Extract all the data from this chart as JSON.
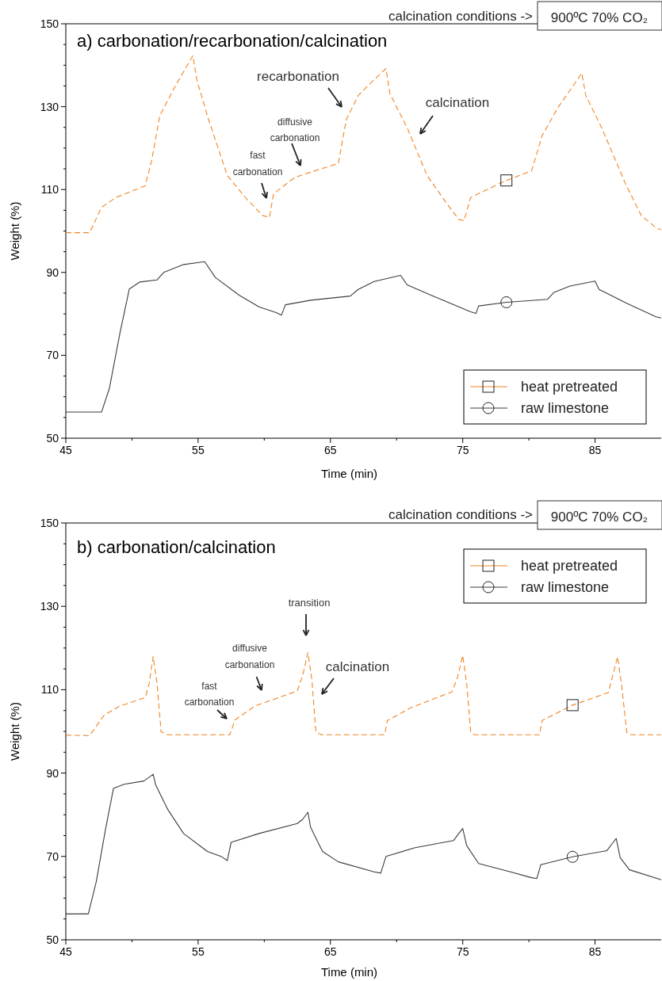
{
  "chart_data": [
    {
      "type": "line",
      "title": "a) carbonation/recarbonation/calcination",
      "xlabel": "Time (min)",
      "ylabel": "Weight (%)",
      "xlim": [
        45,
        90
      ],
      "ylim": [
        50,
        150
      ],
      "xticks": [
        45,
        {
          "value": 50,
          "label": null
        },
        55,
        {
          "value": 60,
          "label": null
        },
        65,
        {
          "value": 70,
          "label": null
        },
        75,
        {
          "value": 80,
          "label": null
        },
        85
      ],
      "yticks": [
        50,
        {
          "value": 55,
          "label": null
        },
        {
          "value": 60,
          "label": null
        },
        {
          "value": 65,
          "label": null
        },
        70,
        {
          "value": 75,
          "label": null
        },
        {
          "value": 80,
          "label": null
        },
        {
          "value": 85,
          "label": null
        },
        90,
        {
          "value": 95,
          "label": null
        },
        {
          "value": 100,
          "label": null
        },
        {
          "value": 105,
          "label": null
        },
        110,
        {
          "value": 115,
          "label": null
        },
        {
          "value": 120,
          "label": null
        },
        {
          "value": 125,
          "label": null
        },
        130,
        {
          "value": 135,
          "label": null
        },
        {
          "value": 140,
          "label": null
        },
        {
          "value": 145,
          "label": null
        },
        150
      ],
      "legend": "bottom right",
      "annotations": [
        "calcination conditions ->",
        "900ºC  70% CO₂",
        "fast carbonation",
        "diffusive carbonation",
        "recarbonation",
        "calcination"
      ],
      "series": [
        {
          "name": "heat pretreated",
          "color": "#f08424",
          "line_style": "dashed",
          "x": [
            45,
            46.8,
            47.7,
            48.8,
            51.0,
            51.5,
            52.1,
            53.3,
            54.6,
            54.9,
            55.7,
            57.2,
            58.7,
            59.9,
            60.4,
            60.7,
            62.3,
            64.1,
            65.6,
            66.2,
            67.1,
            68.3,
            69.2,
            69.5,
            70.8,
            72.3,
            73.8,
            74.7,
            75.1,
            75.6,
            78.3,
            80.2,
            81.0,
            82.2,
            84.0,
            84.3,
            85.5,
            87.3,
            88.5,
            89.6,
            90
          ],
          "values": [
            99.6,
            99.6,
            105.7,
            108.1,
            110.9,
            117.2,
            127.8,
            135.1,
            142.3,
            136.5,
            127.8,
            113.4,
            107.6,
            103.7,
            103.3,
            109.0,
            112.9,
            114.8,
            116.3,
            126.9,
            132.7,
            136.5,
            139.2,
            133.1,
            124.9,
            113.4,
            106.6,
            102.8,
            102.5,
            108.1,
            112.2,
            114.5,
            123.0,
            129.8,
            138.1,
            132.7,
            124.9,
            111.4,
            103.7,
            100.8,
            100.3
          ]
        },
        {
          "name": "raw limestone",
          "color": "#3c3c3c",
          "line_style": "solid",
          "x": [
            45,
            47.7,
            48.3,
            49.1,
            49.8,
            50.6,
            51.9,
            52.4,
            53.9,
            55.5,
            56.3,
            58.1,
            59.6,
            60.9,
            61.3,
            61.6,
            63.5,
            66.5,
            67.1,
            68.3,
            70.3,
            70.8,
            72.6,
            75.6,
            76.0,
            76.2,
            78.3,
            81.4,
            81.9,
            83.1,
            85.0,
            85.3,
            87.3,
            89.6,
            90
          ],
          "values": [
            56.3,
            56.3,
            62.1,
            75.5,
            86.0,
            87.7,
            88.2,
            90.0,
            91.9,
            92.6,
            88.8,
            84.5,
            81.7,
            80.3,
            79.7,
            82.2,
            83.3,
            84.3,
            85.9,
            87.8,
            89.3,
            87.0,
            84.5,
            80.5,
            80.1,
            81.9,
            82.8,
            83.5,
            85.2,
            86.7,
            87.9,
            85.9,
            82.7,
            79.3,
            79.0
          ]
        }
      ]
    },
    {
      "type": "line",
      "title": "b) carbonation/calcination",
      "xlabel": "Time (min)",
      "ylabel": "Weight (%)",
      "xlim": [
        45,
        90
      ],
      "ylim": [
        50,
        150
      ],
      "xticks": [
        45,
        {
          "value": 50,
          "label": null
        },
        55,
        {
          "value": 60,
          "label": null
        },
        65,
        {
          "value": 70,
          "label": null
        },
        75,
        {
          "value": 80,
          "label": null
        },
        85
      ],
      "yticks": [
        50,
        {
          "value": 55,
          "label": null
        },
        {
          "value": 60,
          "label": null
        },
        {
          "value": 65,
          "label": null
        },
        70,
        {
          "value": 75,
          "label": null
        },
        {
          "value": 80,
          "label": null
        },
        {
          "value": 85,
          "label": null
        },
        90,
        {
          "value": 95,
          "label": null
        },
        {
          "value": 100,
          "label": null
        },
        {
          "value": 105,
          "label": null
        },
        110,
        {
          "value": 115,
          "label": null
        },
        {
          "value": 120,
          "label": null
        },
        {
          "value": 125,
          "label": null
        },
        130,
        {
          "value": 135,
          "label": null
        },
        {
          "value": 140,
          "label": null
        },
        {
          "value": 145,
          "label": null
        },
        150
      ],
      "legend": "top right",
      "annotations": [
        "calcination conditions ->",
        "900ºC  70% CO₂",
        "fast carbonation",
        "diffusive carbonation",
        "transition",
        "calcination"
      ],
      "series": [
        {
          "name": "heat pretreated",
          "color": "#f08424",
          "line_style": "dashed",
          "x": [
            45,
            46.8,
            47.9,
            49.1,
            51.0,
            51.3,
            51.6,
            51.9,
            52.2,
            52.7,
            57.4,
            57.8,
            59.3,
            62.5,
            62.9,
            63.3,
            63.6,
            63.9,
            64.3,
            69.1,
            69.3,
            71.1,
            74.2,
            74.6,
            75.0,
            75.3,
            75.6,
            75.9,
            80.8,
            81.0,
            83.3,
            86.0,
            86.3,
            86.7,
            87.0,
            87.4,
            87.7,
            90
          ],
          "values": [
            99.1,
            99.0,
            103.9,
            106.1,
            108.1,
            111.4,
            118.0,
            111.4,
            99.9,
            99.2,
            99.2,
            102.8,
            106.1,
            109.7,
            113.4,
            118.9,
            112.4,
            99.9,
            99.2,
            99.2,
            102.6,
            105.7,
            109.5,
            112.9,
            118.2,
            111.4,
            99.9,
            99.2,
            99.2,
            102.6,
            106.3,
            109.3,
            112.9,
            117.9,
            111.4,
            99.7,
            99.2,
            99.2
          ]
        },
        {
          "name": "raw limestone",
          "color": "#3c3c3c",
          "line_style": "solid",
          "x": [
            45,
            46.7,
            47.3,
            48.0,
            48.6,
            49.4,
            50.9,
            51.3,
            51.6,
            51.8,
            52.7,
            53.9,
            55.7,
            56.8,
            57.2,
            57.5,
            59.6,
            62.5,
            62.9,
            63.3,
            63.5,
            64.4,
            65.6,
            68.3,
            68.8,
            69.2,
            71.4,
            74.3,
            74.7,
            75.0,
            75.3,
            76.2,
            78.6,
            80.2,
            80.6,
            80.9,
            83.3,
            85.9,
            86.3,
            86.6,
            86.9,
            87.6,
            90
          ],
          "values": [
            56.2,
            56.2,
            63.9,
            76.5,
            86.3,
            87.3,
            88.1,
            89.0,
            89.7,
            87.1,
            81.3,
            75.5,
            71.2,
            69.9,
            69.0,
            73.4,
            75.5,
            77.9,
            78.9,
            80.6,
            77.0,
            71.2,
            68.7,
            66.3,
            66.0,
            70.0,
            72.1,
            73.8,
            75.5,
            76.7,
            72.6,
            68.3,
            66.3,
            64.9,
            64.7,
            68.0,
            69.9,
            71.4,
            73.1,
            74.3,
            69.7,
            66.8,
            64.4
          ]
        }
      ]
    }
  ]
}
